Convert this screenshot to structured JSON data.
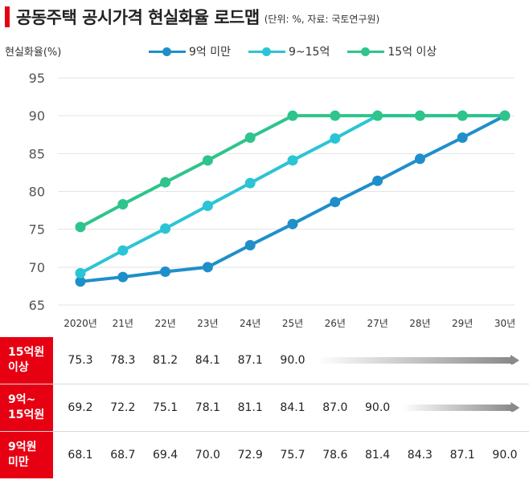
{
  "header": {
    "title": "공동주택 공시가격 현실화율 로드맵",
    "subtitle": "(단위: %, 자료: 국토연구원)"
  },
  "chart_data": {
    "type": "line",
    "title": "공동주택 공시가격 현실화율 로드맵",
    "subtitle": "(단위: %, 자료: 국토연구원)",
    "ylabel": "현실화율(%)",
    "xlabel": "",
    "categories": [
      "2020년",
      "21년",
      "22년",
      "23년",
      "24년",
      "25년",
      "26년",
      "27년",
      "28년",
      "29년",
      "30년"
    ],
    "ylim": [
      65,
      95
    ],
    "yticks": [
      65,
      70,
      75,
      80,
      85,
      90,
      95
    ],
    "grid": true,
    "legend_position": "top",
    "series": [
      {
        "name": "9억 미만",
        "color": "#1f8fc9",
        "values": [
          68.1,
          68.7,
          69.4,
          70.0,
          72.9,
          75.7,
          78.6,
          81.4,
          84.3,
          87.1,
          90.0
        ]
      },
      {
        "name": "9~15억",
        "color": "#2bc4d4",
        "values": [
          69.2,
          72.2,
          75.1,
          78.1,
          81.1,
          84.1,
          87.0,
          90.0,
          90.0,
          90.0,
          90.0
        ]
      },
      {
        "name": "15억 이상",
        "color": "#2ec48c",
        "values": [
          75.3,
          78.3,
          81.2,
          84.1,
          87.1,
          90.0,
          90.0,
          90.0,
          90.0,
          90.0,
          90.0
        ]
      }
    ]
  },
  "table": {
    "rows": [
      {
        "label": "15억원\n이상",
        "values": [
          "75.3",
          "78.3",
          "81.2",
          "84.1",
          "87.1",
          "90.0"
        ]
      },
      {
        "label": "9억~\n15억원",
        "values": [
          "69.2",
          "72.2",
          "75.1",
          "78.1",
          "81.1",
          "84.1",
          "87.0",
          "90.0"
        ]
      },
      {
        "label": "9억원\n미만",
        "values": [
          "68.1",
          "68.7",
          "69.4",
          "70.0",
          "72.9",
          "75.7",
          "78.6",
          "81.4",
          "84.3",
          "87.1",
          "90.0"
        ]
      }
    ]
  }
}
